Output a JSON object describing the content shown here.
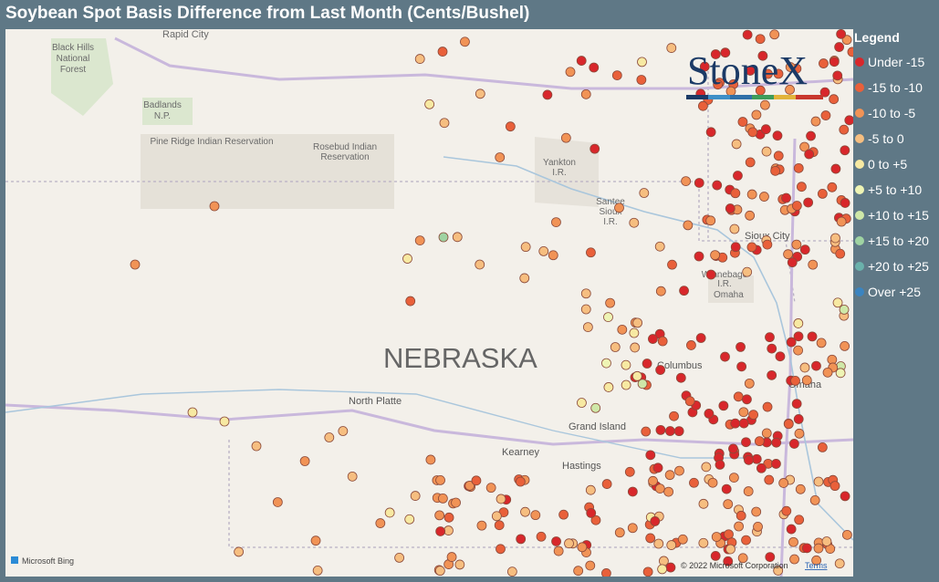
{
  "header": {
    "title": "Soybean Spot Basis Difference from Last Month (Cents/Bushel)"
  },
  "legend": {
    "title": "Legend",
    "items": [
      {
        "label": "Under -15",
        "color": "#d8272b"
      },
      {
        "label": "-15 to -10",
        "color": "#e9603a"
      },
      {
        "label": "-10 to -5",
        "color": "#f19356"
      },
      {
        "label": "-5 to 0",
        "color": "#f6be80"
      },
      {
        "label": "0 to +5",
        "color": "#f7e9a2"
      },
      {
        "label": "+5 to +10",
        "color": "#eef4b4"
      },
      {
        "label": "+10 to +15",
        "color": "#cfe8a8"
      },
      {
        "label": "+15 to +20",
        "color": "#9fd3a2"
      },
      {
        "label": "+20 to +25",
        "color": "#6ab1ab"
      },
      {
        "label": "Over +25",
        "color": "#3b84c0"
      }
    ]
  },
  "map": {
    "labels": {
      "rapid_city": "Rapid City",
      "black_hills": "Black Hills",
      "national": "National",
      "forest": "Forest",
      "badlands": "Badlands",
      "np": "N.P.",
      "pine_ridge": "Pine Ridge Indian Reservation",
      "rosebud": "Rosebud Indian",
      "reservation": "Reservation",
      "yankton": "Yankton",
      "yankton_ir": "I.R.",
      "santee": "Santee",
      "sioux": "Sioux",
      "santee_ir": "I.R.",
      "sioux_city": "Sioux City",
      "winnebago": "Winnebago",
      "winnebago_ir": "I.R.",
      "omaha_res": "Omaha",
      "nebraska": "NEBRASKA",
      "columbus": "Columbus",
      "north_platte": "North Platte",
      "grand_island": "Grand Island",
      "kearney": "Kearney",
      "hastings": "Hastings",
      "omaha": "Omaha"
    },
    "logo": "StoneX",
    "bing": "Microsoft Bing",
    "copyright": "© 2022 Microsoft Corporation",
    "terms": "Terms"
  }
}
